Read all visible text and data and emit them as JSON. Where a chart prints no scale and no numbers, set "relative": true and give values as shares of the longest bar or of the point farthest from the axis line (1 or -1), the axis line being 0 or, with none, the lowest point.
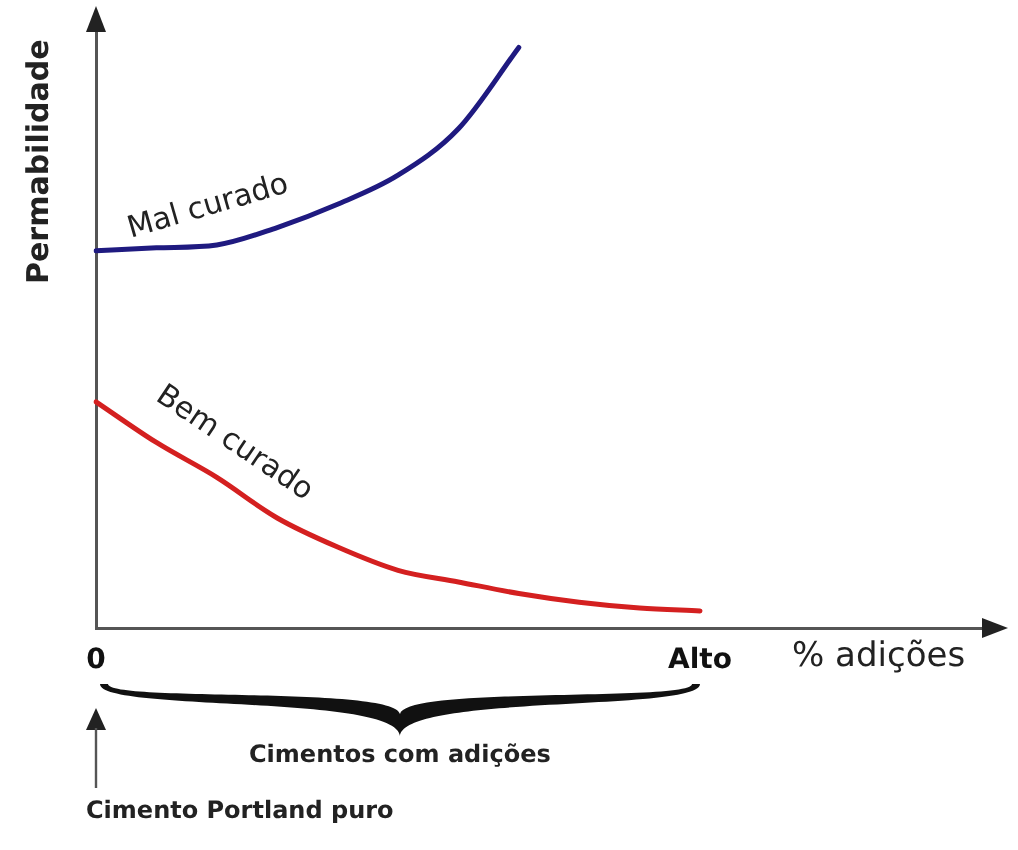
{
  "chart_data": {
    "type": "line",
    "relative": true,
    "ylabel": "Permabilidade",
    "xlabel": "% adições",
    "categories": [
      "0",
      null,
      null,
      null,
      null,
      null,
      null,
      null,
      null,
      null,
      "Alto",
      null,
      null,
      null,
      null,
      null
    ],
    "series": [
      {
        "name": "Mal curado",
        "color": "#1f1a80",
        "values": [
          0.65,
          0.655,
          0.66,
          0.69,
          0.73,
          0.78,
          0.86,
          1,
          null,
          null,
          null,
          null,
          null,
          null,
          null,
          null
        ]
      },
      {
        "name": "Bem curado",
        "color": "#d42020",
        "values": [
          0.39,
          0.32,
          0.26,
          0.19,
          0.14,
          0.1,
          0.08,
          0.06,
          0.045,
          0.035,
          0.03,
          null,
          null,
          null,
          null,
          null
        ]
      }
    ],
    "annotations": [
      "Cimentos com adições",
      "Cimento Portland puro"
    ],
    "grid": false,
    "legend": false,
    "marker": "none",
    "line_style": "solid"
  }
}
